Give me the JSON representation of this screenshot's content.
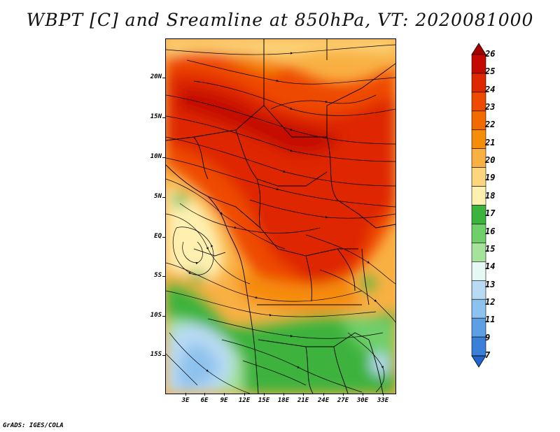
{
  "title": "WBPT [C] and Sreamline at 850hPa, VT: 2020081000",
  "footer": "GrADS: IGES/COLA",
  "map": {
    "lat_labels": [
      "20N",
      "15N",
      "10N",
      "5N",
      "EQ",
      "5S",
      "10S",
      "15S"
    ],
    "lon_labels": [
      "3E",
      "6E",
      "9E",
      "12E",
      "15E",
      "18E",
      "21E",
      "24E",
      "27E",
      "30E",
      "33E"
    ]
  },
  "colorbar": {
    "labels": [
      "26",
      "25",
      "24",
      "23",
      "22",
      "21",
      "20",
      "19",
      "18",
      "17",
      "16",
      "15",
      "14",
      "13",
      "12",
      "11",
      "9",
      "7"
    ],
    "colors": [
      "#a80000",
      "#c40a00",
      "#de2800",
      "#ee4a00",
      "#f26a00",
      "#f58c0a",
      "#f9b043",
      "#fbd67e",
      "#fff0b0",
      "#3cb33c",
      "#6fcf6a",
      "#a5e39b",
      "#e6f8f3",
      "#b8daf3",
      "#8ec2ee",
      "#5e9fe3",
      "#3a7fd8",
      "#2064cc"
    ]
  }
}
